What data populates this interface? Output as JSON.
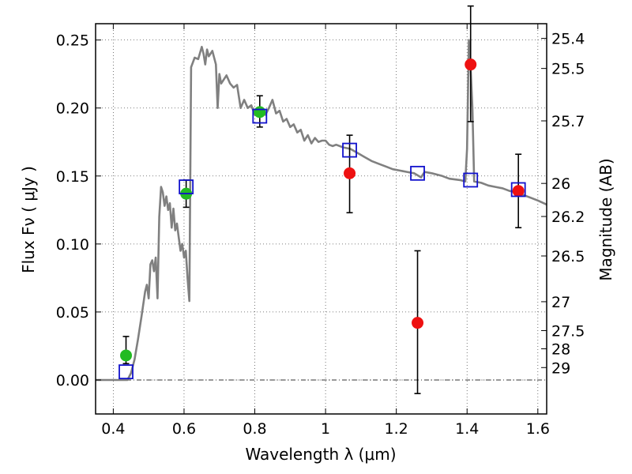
{
  "chart_data": {
    "type": "scatter",
    "xlabel": "Wavelength  λ (μm)",
    "ylabel": "Flux  Fν  ( μJy )",
    "ylabel_right": "Magnitude (AB)",
    "xlim": [
      0.35,
      1.625
    ],
    "ylim": [
      -0.025,
      0.262
    ],
    "grid": true,
    "x_ticks": [
      {
        "value": 0.4,
        "label": "0.4"
      },
      {
        "value": 0.6,
        "label": "0.6"
      },
      {
        "value": 0.8,
        "label": "0.8"
      },
      {
        "value": 1.0,
        "label": "1"
      },
      {
        "value": 1.2,
        "label": "1.2"
      },
      {
        "value": 1.4,
        "label": "1.4"
      },
      {
        "value": 1.6,
        "label": "1.6"
      }
    ],
    "y_ticks": [
      {
        "value": 0.0,
        "label": "0.00"
      },
      {
        "value": 0.05,
        "label": "0.05"
      },
      {
        "value": 0.1,
        "label": "0.10"
      },
      {
        "value": 0.15,
        "label": "0.15"
      },
      {
        "value": 0.2,
        "label": "0.20"
      },
      {
        "value": 0.25,
        "label": "0.25"
      }
    ],
    "y2_ticks": [
      {
        "value": 25.4,
        "label": "25.4"
      },
      {
        "value": 25.5,
        "label": "25.5"
      },
      {
        "value": 25.7,
        "label": "25.7"
      },
      {
        "value": 26.0,
        "label": "26"
      },
      {
        "value": 26.2,
        "label": "26.2"
      },
      {
        "value": 26.5,
        "label": "26.5"
      },
      {
        "value": 27.0,
        "label": "27"
      },
      {
        "value": 27.5,
        "label": "27.5"
      },
      {
        "value": 28.0,
        "label": "28"
      },
      {
        "value": 29.0,
        "label": "29"
      }
    ],
    "model_sed": {
      "color": "#808080",
      "points": [
        [
          0.35,
          0.0
        ],
        [
          0.44,
          0.0
        ],
        [
          0.45,
          0.005
        ],
        [
          0.46,
          0.015
        ],
        [
          0.47,
          0.03
        ],
        [
          0.48,
          0.047
        ],
        [
          0.49,
          0.065
        ],
        [
          0.495,
          0.07
        ],
        [
          0.5,
          0.06
        ],
        [
          0.505,
          0.085
        ],
        [
          0.51,
          0.088
        ],
        [
          0.515,
          0.08
        ],
        [
          0.52,
          0.09
        ],
        [
          0.525,
          0.06
        ],
        [
          0.53,
          0.12
        ],
        [
          0.535,
          0.142
        ],
        [
          0.54,
          0.138
        ],
        [
          0.545,
          0.128
        ],
        [
          0.55,
          0.135
        ],
        [
          0.555,
          0.125
        ],
        [
          0.56,
          0.13
        ],
        [
          0.565,
          0.112
        ],
        [
          0.57,
          0.126
        ],
        [
          0.575,
          0.11
        ],
        [
          0.58,
          0.115
        ],
        [
          0.585,
          0.105
        ],
        [
          0.59,
          0.095
        ],
        [
          0.595,
          0.1
        ],
        [
          0.6,
          0.09
        ],
        [
          0.605,
          0.095
        ],
        [
          0.61,
          0.075
        ],
        [
          0.615,
          0.058
        ],
        [
          0.62,
          0.23
        ],
        [
          0.63,
          0.237
        ],
        [
          0.64,
          0.236
        ],
        [
          0.65,
          0.245
        ],
        [
          0.655,
          0.24
        ],
        [
          0.66,
          0.232
        ],
        [
          0.665,
          0.243
        ],
        [
          0.67,
          0.238
        ],
        [
          0.68,
          0.242
        ],
        [
          0.69,
          0.232
        ],
        [
          0.695,
          0.2
        ],
        [
          0.7,
          0.225
        ],
        [
          0.705,
          0.218
        ],
        [
          0.71,
          0.22
        ],
        [
          0.72,
          0.224
        ],
        [
          0.73,
          0.218
        ],
        [
          0.74,
          0.215
        ],
        [
          0.75,
          0.217
        ],
        [
          0.76,
          0.2
        ],
        [
          0.77,
          0.206
        ],
        [
          0.78,
          0.2
        ],
        [
          0.79,
          0.202
        ],
        [
          0.8,
          0.195
        ],
        [
          0.81,
          0.199
        ],
        [
          0.82,
          0.2
        ],
        [
          0.83,
          0.195
        ],
        [
          0.84,
          0.2
        ],
        [
          0.85,
          0.206
        ],
        [
          0.86,
          0.196
        ],
        [
          0.87,
          0.198
        ],
        [
          0.88,
          0.19
        ],
        [
          0.89,
          0.192
        ],
        [
          0.9,
          0.186
        ],
        [
          0.91,
          0.188
        ],
        [
          0.92,
          0.182
        ],
        [
          0.93,
          0.184
        ],
        [
          0.94,
          0.176
        ],
        [
          0.95,
          0.18
        ],
        [
          0.96,
          0.174
        ],
        [
          0.97,
          0.178
        ],
        [
          0.98,
          0.175
        ],
        [
          0.99,
          0.176
        ],
        [
          1.0,
          0.176
        ],
        [
          1.01,
          0.173
        ],
        [
          1.02,
          0.172
        ],
        [
          1.03,
          0.173
        ],
        [
          1.05,
          0.171
        ],
        [
          1.07,
          0.17
        ],
        [
          1.09,
          0.167
        ],
        [
          1.11,
          0.164
        ],
        [
          1.13,
          0.161
        ],
        [
          1.15,
          0.159
        ],
        [
          1.17,
          0.157
        ],
        [
          1.19,
          0.155
        ],
        [
          1.21,
          0.154
        ],
        [
          1.23,
          0.153
        ],
        [
          1.25,
          0.152
        ],
        [
          1.27,
          0.149
        ],
        [
          1.28,
          0.153
        ],
        [
          1.3,
          0.152
        ],
        [
          1.33,
          0.15
        ],
        [
          1.35,
          0.148
        ],
        [
          1.38,
          0.147
        ],
        [
          1.395,
          0.146
        ],
        [
          1.4,
          0.17
        ],
        [
          1.405,
          0.25
        ],
        [
          1.41,
          0.23
        ],
        [
          1.415,
          0.2
        ],
        [
          1.42,
          0.146
        ],
        [
          1.44,
          0.145
        ],
        [
          1.46,
          0.143
        ],
        [
          1.48,
          0.142
        ],
        [
          1.5,
          0.141
        ],
        [
          1.52,
          0.139
        ],
        [
          1.54,
          0.138
        ],
        [
          1.56,
          0.136
        ],
        [
          1.58,
          0.134
        ],
        [
          1.6,
          0.132
        ],
        [
          1.625,
          0.129
        ]
      ]
    },
    "series": [
      {
        "marker": "circle",
        "color": "#22bb22",
        "points": [
          {
            "x": 0.436,
            "y": 0.018,
            "yerr_low": 0.012,
            "yerr_high": 0.032
          },
          {
            "x": 0.606,
            "y": 0.137,
            "yerr_low": 0.127,
            "yerr_high": 0.147
          },
          {
            "x": 0.814,
            "y": 0.197,
            "yerr_low": 0.186,
            "yerr_high": 0.209
          }
        ]
      },
      {
        "marker": "circle",
        "color": "#ee1111",
        "points": [
          {
            "x": 1.068,
            "y": 0.152,
            "yerr_low": 0.123,
            "yerr_high": 0.18
          },
          {
            "x": 1.26,
            "y": 0.042,
            "yerr_low": -0.01,
            "yerr_high": 0.095
          },
          {
            "x": 1.41,
            "y": 0.232,
            "yerr_low": 0.19,
            "yerr_high": 0.275
          },
          {
            "x": 1.545,
            "y": 0.139,
            "yerr_low": 0.112,
            "yerr_high": 0.166
          }
        ]
      },
      {
        "marker": "open-square",
        "color": "#1111cc",
        "points": [
          {
            "x": 0.436,
            "y": 0.006
          },
          {
            "x": 0.606,
            "y": 0.142
          },
          {
            "x": 0.814,
            "y": 0.194
          },
          {
            "x": 1.068,
            "y": 0.169
          },
          {
            "x": 1.26,
            "y": 0.152
          },
          {
            "x": 1.41,
            "y": 0.147
          },
          {
            "x": 1.545,
            "y": 0.14
          }
        ]
      }
    ]
  }
}
